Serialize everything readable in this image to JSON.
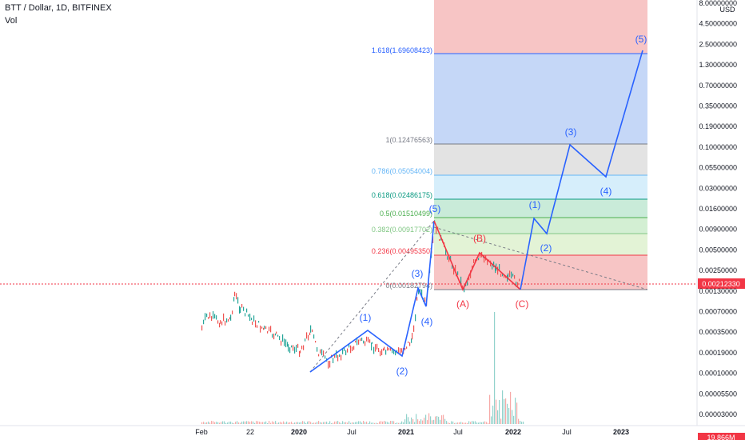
{
  "header": {
    "title": "BTT / Dollar, 1D, BITFINEX",
    "volume_label": "Vol"
  },
  "chart_data": {
    "type": "line",
    "title": "BTT / Dollar, 1D, BITFINEX",
    "xlabel": "",
    "ylabel": "USD",
    "y_scale": "log",
    "y_ticks": [
      "8.00000000",
      "4.50000000",
      "2.50000000",
      "1.30000000",
      "0.70000000",
      "0.35000000",
      "0.19000000",
      "0.10000000",
      "0.05500000",
      "0.03000000",
      "0.01600000",
      "0.00900000",
      "0.00500000",
      "0.00250000",
      "0.00130000",
      "0.00070000",
      "0.00035000",
      "0.00019000",
      "0.00010000",
      "0.00005500",
      "0.00003000"
    ],
    "y_unit_label": "USD",
    "last_price": "0.00212330",
    "volume_label_partial": "19.866M",
    "x_ticks": [
      "Feb",
      "22",
      "2020",
      "Jul",
      "2021",
      "Jul",
      "2022",
      "Jul",
      "2023"
    ],
    "fib_levels": [
      {
        "label": "1.618(1.69608423)",
        "value": 1.69608423
      },
      {
        "label": "1(0.12476563)",
        "value": 0.12476563
      },
      {
        "label": "0.786(0.05054004)",
        "value": 0.05054004
      },
      {
        "label": "0.618(0.02486175)",
        "value": 0.02486175
      },
      {
        "label": "0.5(0.01510499)",
        "value": 0.01510499
      },
      {
        "label": "0.382(0.00917702)",
        "value": 0.00917702
      },
      {
        "label": "0.236(0.00495350)",
        "value": 0.0049535
      },
      {
        "label": "0(0.00182794)",
        "value": 0.00182794
      }
    ],
    "wave_labels": {
      "impulse_1": [
        "(1)",
        "(2)",
        "(3)",
        "(4)",
        "(5)"
      ],
      "correction": [
        "(A)",
        "(B)",
        "(C)"
      ],
      "impulse_2": [
        "(1)",
        "(2)",
        "(3)",
        "(4)",
        "(5)"
      ]
    }
  }
}
